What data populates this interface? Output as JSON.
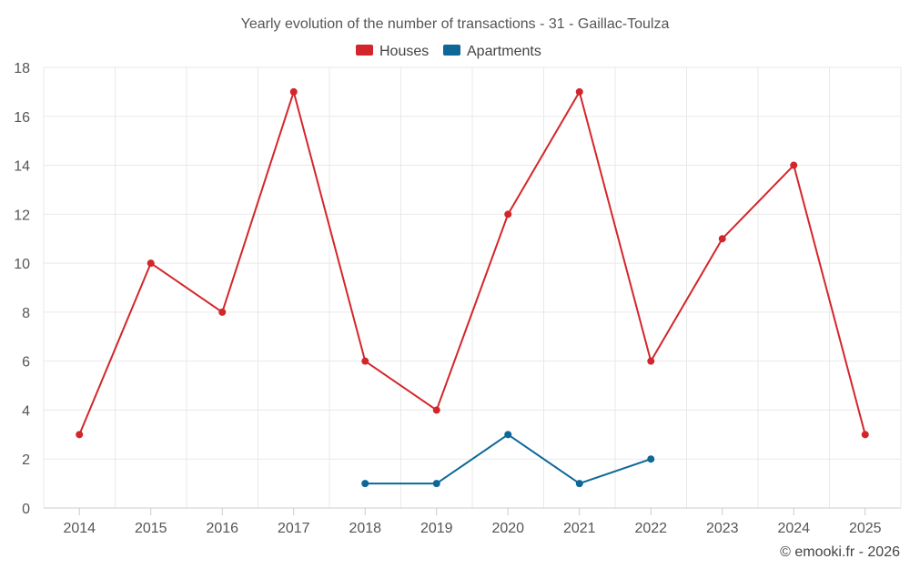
{
  "chart_data": {
    "type": "line",
    "title": "Yearly evolution of the number of transactions - 31 - Gaillac-Toulza",
    "xlabel": "",
    "ylabel": "",
    "categories": [
      "2014",
      "2015",
      "2016",
      "2017",
      "2018",
      "2019",
      "2020",
      "2021",
      "2022",
      "2023",
      "2024",
      "2025"
    ],
    "ylim": [
      0,
      18
    ],
    "yticks": [
      "0",
      "2",
      "4",
      "6",
      "8",
      "10",
      "12",
      "14",
      "16",
      "18"
    ],
    "grid": true,
    "legend_position": "top-center",
    "series": [
      {
        "name": "Houses",
        "color": "#d3262b",
        "values": [
          3,
          10,
          8,
          17,
          6,
          4,
          12,
          17,
          6,
          11,
          14,
          3
        ]
      },
      {
        "name": "Apartments",
        "color": "#0d6797",
        "values": [
          null,
          null,
          null,
          null,
          1,
          1,
          3,
          1,
          2,
          null,
          null,
          null
        ]
      }
    ]
  },
  "credit": "© emooki.fr - 2026"
}
